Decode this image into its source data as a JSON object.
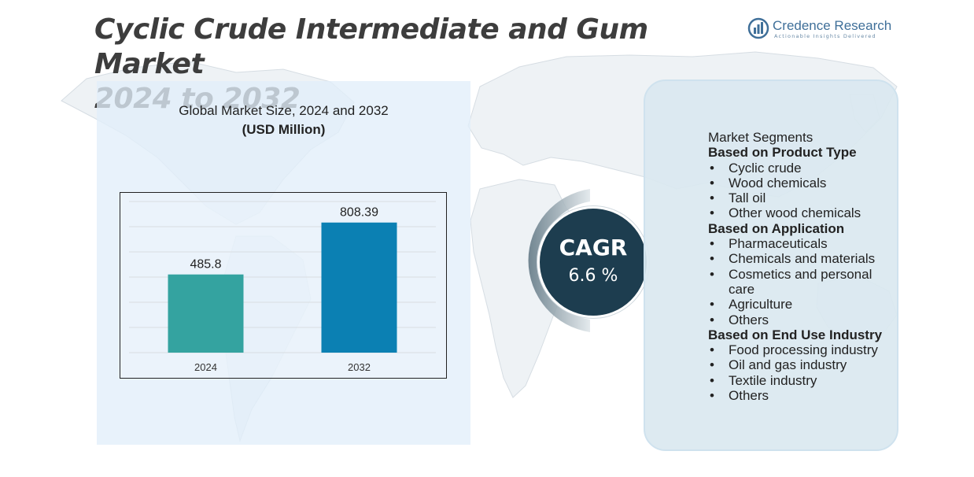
{
  "header": {
    "title_line1": "Cyclic Crude Intermediate and Gum Market",
    "title_line2": "2024 to 2032"
  },
  "logo": {
    "name": "Credence Research",
    "tagline": "Actionable Insights Delivered",
    "color": "#3f6f99"
  },
  "chart_data": {
    "type": "bar",
    "title": "Global Market Size,  2024 and 2032",
    "subtitle": "(USD Million)",
    "categories": [
      "2024",
      "2032"
    ],
    "values": [
      485.8,
      808.39
    ],
    "data_labels": [
      "485.8",
      "808.39"
    ],
    "bar_colors": [
      "#34a3a0",
      "#0b80b3"
    ],
    "ylim": [
      0,
      900
    ],
    "grid": true,
    "legend": "none"
  },
  "cagr": {
    "label": "CAGR",
    "value": "6.6 %",
    "color": "#1d3d4f"
  },
  "segments": {
    "title": "Market Segments",
    "groups": [
      {
        "heading": "Based on Product Type",
        "items": [
          "Cyclic crude",
          "Wood chemicals",
          "Tall oil",
          "Other wood chemicals"
        ]
      },
      {
        "heading": "Based on Application",
        "items": [
          "Pharmaceuticals",
          "Chemicals and materials",
          "Cosmetics and personal care",
          "Agriculture",
          "Others"
        ]
      },
      {
        "heading": "Based on End Use Industry",
        "items": [
          "Food processing industry",
          "Oil and gas industry",
          "Textile industry",
          "Others"
        ]
      }
    ]
  }
}
